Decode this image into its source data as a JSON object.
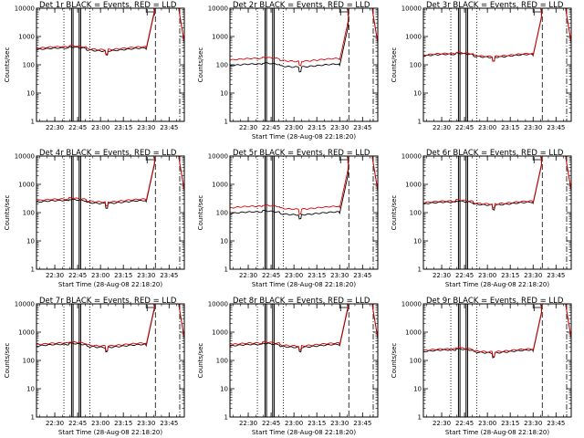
{
  "chart_data": [
    {
      "type": "line",
      "title": "Det 1r BLACK = Events, RED = LLD",
      "xlabel": "",
      "ylabel": "Counts/sec",
      "ylog": true,
      "ylim": [
        1,
        10000
      ],
      "y_ticks": [
        "1",
        "10",
        "100",
        "1000",
        "10000"
      ],
      "x_ticks": [
        "22:30",
        "22:45",
        "23:00",
        "23:15",
        "23:30",
        "23:45"
      ],
      "xlim": [
        "22:18",
        "23:55"
      ],
      "series": [
        {
          "name": "Events",
          "color": "#000000",
          "base": 350
        },
        {
          "name": "LLD",
          "color": "#e00000",
          "base": 390
        }
      ]
    },
    {
      "type": "line",
      "title": "Det 2r BLACK = Events, RED = LLD",
      "xlabel": "Start Time (28-Aug-08 22:18:20)",
      "ylabel": "Counts/sec",
      "ylog": true,
      "ylim": [
        1,
        10000
      ],
      "y_ticks": [
        "1",
        "10",
        "100",
        "1000",
        "10000"
      ],
      "x_ticks": [
        "22:30",
        "22:45",
        "23:00",
        "23:15",
        "23:30",
        "23:45"
      ],
      "xlim": [
        "22:18",
        "23:55"
      ],
      "series": [
        {
          "name": "Events",
          "color": "#000000",
          "base": 95
        },
        {
          "name": "LLD",
          "color": "#e00000",
          "base": 150
        }
      ]
    },
    {
      "type": "line",
      "title": "Det 3r BLACK = Events, RED = LLD",
      "xlabel": "",
      "ylabel": "Counts/sec",
      "ylog": true,
      "ylim": [
        1,
        10000
      ],
      "y_ticks": [
        "1",
        "10",
        "100",
        "1000",
        "10000"
      ],
      "x_ticks": [
        "22:30",
        "22:45",
        "23:00",
        "23:15",
        "23:30",
        "23:45"
      ],
      "xlim": [
        "22:18",
        "23:55"
      ],
      "series": [
        {
          "name": "Events",
          "color": "#000000",
          "base": 210
        },
        {
          "name": "LLD",
          "color": "#e00000",
          "base": 225
        }
      ]
    },
    {
      "type": "line",
      "title": "Det 4r BLACK = Events, RED = LLD",
      "xlabel": "Start Time (28-Aug-08 22:18:20)",
      "ylabel": "Counts/sec",
      "ylog": true,
      "ylim": [
        1,
        10000
      ],
      "y_ticks": [
        "1",
        "10",
        "100",
        "1000",
        "10000"
      ],
      "x_ticks": [
        "22:30",
        "22:45",
        "23:00",
        "23:15",
        "23:30",
        "23:45"
      ],
      "xlim": [
        "22:18",
        "23:55"
      ],
      "series": [
        {
          "name": "Events",
          "color": "#000000",
          "base": 240
        },
        {
          "name": "LLD",
          "color": "#e00000",
          "base": 270
        }
      ]
    },
    {
      "type": "line",
      "title": "Det 5r BLACK = Events, RED = LLD",
      "xlabel": "Start Time (28-Aug-08 22:18:20)",
      "ylabel": "Counts/sec",
      "ylog": true,
      "ylim": [
        1,
        10000
      ],
      "y_ticks": [
        "1",
        "10",
        "100",
        "1000",
        "10000"
      ],
      "x_ticks": [
        "22:30",
        "22:45",
        "23:00",
        "23:15",
        "23:30",
        "23:45"
      ],
      "xlim": [
        "22:18",
        "23:55"
      ],
      "series": [
        {
          "name": "Events",
          "color": "#000000",
          "base": 95
        },
        {
          "name": "LLD",
          "color": "#e00000",
          "base": 150
        }
      ]
    },
    {
      "type": "line",
      "title": "Det 6r BLACK = Events, RED = LLD",
      "xlabel": "Start Time (28-Aug-08 22:18:20)",
      "ylabel": "Counts/sec",
      "ylog": true,
      "ylim": [
        1,
        10000
      ],
      "y_ticks": [
        "1",
        "10",
        "100",
        "1000",
        "10000"
      ],
      "x_ticks": [
        "22:30",
        "22:45",
        "23:00",
        "23:15",
        "23:30",
        "23:45"
      ],
      "xlim": [
        "22:18",
        "23:55"
      ],
      "series": [
        {
          "name": "Events",
          "color": "#000000",
          "base": 210
        },
        {
          "name": "LLD",
          "color": "#e00000",
          "base": 230
        }
      ]
    },
    {
      "type": "line",
      "title": "Det 7r BLACK = Events, RED = LLD",
      "xlabel": "Start Time (28-Aug-08 22:18:20)",
      "ylabel": "Counts/sec",
      "ylog": true,
      "ylim": [
        1,
        10000
      ],
      "y_ticks": [
        "1",
        "10",
        "100",
        "1000",
        "10000"
      ],
      "x_ticks": [
        "22:30",
        "22:45",
        "23:00",
        "23:15",
        "23:30",
        "23:45"
      ],
      "xlim": [
        "22:18",
        "23:55"
      ],
      "series": [
        {
          "name": "Events",
          "color": "#000000",
          "base": 330
        },
        {
          "name": "LLD",
          "color": "#e00000",
          "base": 370
        }
      ]
    },
    {
      "type": "line",
      "title": "Det 8r BLACK = Events, RED = LLD",
      "xlabel": "Start Time (28-Aug-08 22:18:20)",
      "ylabel": "Counts/sec",
      "ylog": true,
      "ylim": [
        1,
        10000
      ],
      "y_ticks": [
        "1",
        "10",
        "100",
        "1000",
        "10000"
      ],
      "x_ticks": [
        "22:30",
        "22:45",
        "23:00",
        "23:15",
        "23:30",
        "23:45"
      ],
      "xlim": [
        "22:18",
        "23:55"
      ],
      "series": [
        {
          "name": "Events",
          "color": "#000000",
          "base": 330
        },
        {
          "name": "LLD",
          "color": "#e00000",
          "base": 370
        }
      ]
    },
    {
      "type": "line",
      "title": "Det 9r BLACK = Events, RED = LLD",
      "xlabel": "Start Time (28-Aug-08 22:18:20)",
      "ylabel": "Counts/sec",
      "ylog": true,
      "ylim": [
        1,
        10000
      ],
      "y_ticks": [
        "1",
        "10",
        "100",
        "1000",
        "10000"
      ],
      "x_ticks": [
        "22:30",
        "22:45",
        "23:00",
        "23:15",
        "23:30",
        "23:45"
      ],
      "xlim": [
        "22:18",
        "23:55"
      ],
      "series": [
        {
          "name": "Events",
          "color": "#000000",
          "base": 210
        },
        {
          "name": "LLD",
          "color": "#e00000",
          "base": 230
        }
      ]
    }
  ]
}
